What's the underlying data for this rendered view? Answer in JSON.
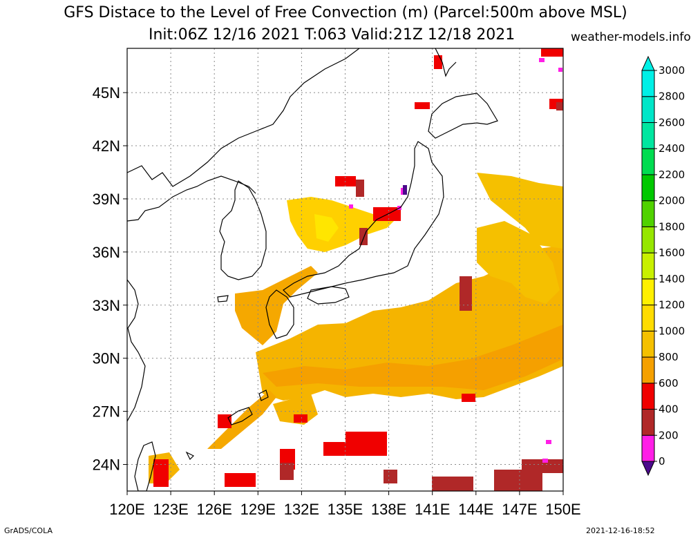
{
  "header": {
    "title_line1": "GFS Distace to the Level of Free Convection (m) (Parcel:500m above MSL)",
    "title_line2": "Init:06Z 12/16 2021 T:063 Valid:21Z 12/18 2021",
    "site": "weather-models.info"
  },
  "footer": {
    "left": "GrADS/COLA",
    "right": "2021-12-16-18:52"
  },
  "map": {
    "lon_range": [
      120,
      150
    ],
    "lat_range": [
      22.5,
      47.5
    ],
    "lon_labels": [
      "120E",
      "123E",
      "126E",
      "129E",
      "132E",
      "135E",
      "138E",
      "141E",
      "144E",
      "147E",
      "150E"
    ],
    "lat_labels": [
      "24N",
      "27N",
      "30N",
      "33N",
      "36N",
      "39N",
      "42N",
      "45N"
    ],
    "grid": "dotted"
  },
  "colorbar": {
    "labels": [
      "0",
      "200",
      "400",
      "600",
      "800",
      "1000",
      "1200",
      "1400",
      "1600",
      "1800",
      "2000",
      "2200",
      "2400",
      "2600",
      "2800",
      "3000"
    ],
    "colors": [
      "#4b0a8c",
      "#ff1ee6",
      "#b02828",
      "#f00000",
      "#f5a000",
      "#f5c000",
      "#ffdc00",
      "#fff000",
      "#c8f000",
      "#96e600",
      "#50d200",
      "#00c800",
      "#00dc50",
      "#00e6a0",
      "#00e6c8",
      "#00f0e6"
    ]
  }
}
